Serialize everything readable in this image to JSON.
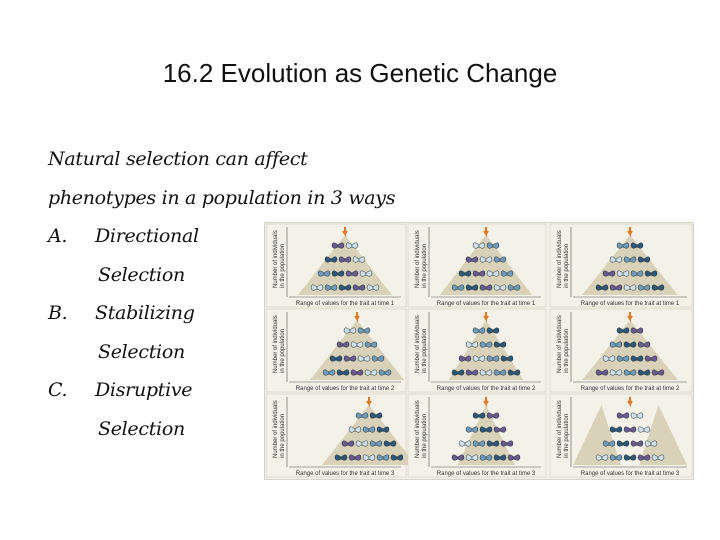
{
  "title": "16.2 Evolution as Genetic Change",
  "intro_line1": "Natural selection can affect",
  "intro_line2": "phenotypes in a population in 3 ways",
  "items": [
    {
      "marker": "A.",
      "label": "Directional",
      "continuation": "Selection"
    },
    {
      "marker": "B.",
      "label": "Stabilizing",
      "continuation": "Selection"
    },
    {
      "marker": "C.",
      "label": "Disruptive",
      "continuation": "Selection"
    }
  ],
  "figure": {
    "y_label_line1": "Number of individuals",
    "y_label_line2": "in the population",
    "x_label_time1": "Range of values for the trait at time 1",
    "x_label_time2": "Range of values for the trait at time 2",
    "x_label_time3": "Range of values for the trait at time 3",
    "colors": {
      "panel": "#f4f1e8",
      "pyramid": "#d9d2b8",
      "arrow": "#e07a2a",
      "butterfly_light": "#cfe0ea",
      "butterfly_mid": "#6f9bb8",
      "butterfly_dark": "#2f5876",
      "butterfly_purple": "#6a5a8e"
    }
  }
}
